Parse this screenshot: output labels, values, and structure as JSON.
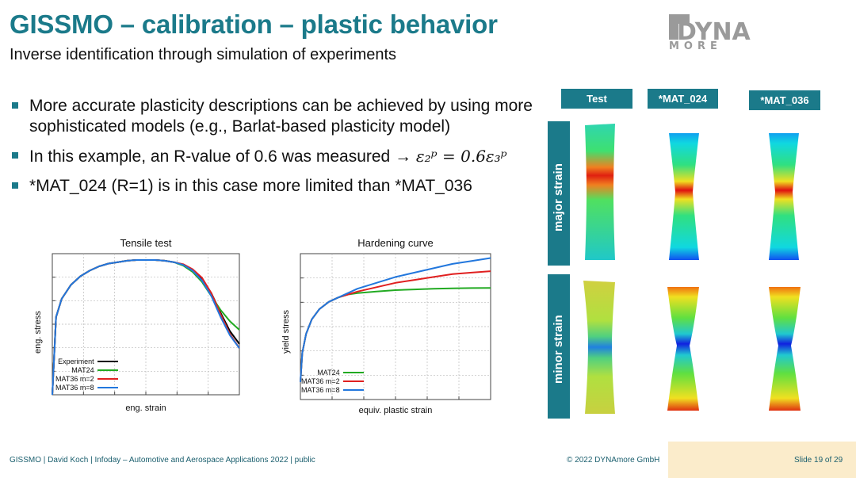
{
  "slide": {
    "title": "GISSMO – calibration – plastic behavior",
    "subtitle": "Inverse identification through simulation of experiments",
    "logo": {
      "line1": "DYNA",
      "line2": "MORE"
    },
    "bullets": [
      {
        "text": "More accurate plasticity descriptions can be achieved by using more sophisticated models (e.g., Barlat-based plasticity model)"
      },
      {
        "text": "In this example, an R-value of 0.6 was measured → ",
        "formula": "ε₂ᵖ = 0.6ε₃ᵖ"
      },
      {
        "text": "*MAT_024 (R=1) is in this case more limited than *MAT_036"
      }
    ]
  },
  "chart_data": [
    {
      "type": "line",
      "title": "Tensile test",
      "xlabel": "eng. strain",
      "ylabel": "eng. stress",
      "xlim": [
        0,
        1
      ],
      "ylim": [
        0,
        1
      ],
      "grid": true,
      "legend_position": "bottom-left",
      "x": [
        0.0,
        0.02,
        0.05,
        0.1,
        0.15,
        0.2,
        0.25,
        0.3,
        0.35,
        0.4,
        0.45,
        0.5,
        0.55,
        0.6,
        0.65,
        0.7,
        0.75,
        0.8,
        0.85,
        0.9,
        0.95,
        1.0
      ],
      "series": [
        {
          "name": "Experiment",
          "color": "#000000",
          "values": [
            0.0,
            0.55,
            0.68,
            0.78,
            0.84,
            0.88,
            0.91,
            0.93,
            0.94,
            0.95,
            0.955,
            0.955,
            0.955,
            0.95,
            0.94,
            0.92,
            0.88,
            0.82,
            0.72,
            0.58,
            0.45,
            0.36
          ]
        },
        {
          "name": "MAT24",
          "color": "#22aa22",
          "values": [
            0.0,
            0.55,
            0.68,
            0.78,
            0.84,
            0.88,
            0.91,
            0.93,
            0.94,
            0.95,
            0.955,
            0.955,
            0.955,
            0.95,
            0.94,
            0.915,
            0.87,
            0.8,
            0.7,
            0.6,
            0.52,
            0.46
          ]
        },
        {
          "name": "MAT36 m=2",
          "color": "#e02020",
          "values": [
            0.0,
            0.55,
            0.68,
            0.78,
            0.84,
            0.88,
            0.91,
            0.93,
            0.94,
            0.95,
            0.955,
            0.955,
            0.955,
            0.95,
            0.94,
            0.925,
            0.89,
            0.83,
            0.72,
            0.57,
            0.43,
            0.33
          ]
        },
        {
          "name": "MAT36 m=8",
          "color": "#2277dd",
          "values": [
            0.0,
            0.55,
            0.68,
            0.78,
            0.84,
            0.88,
            0.91,
            0.93,
            0.94,
            0.95,
            0.955,
            0.955,
            0.955,
            0.95,
            0.94,
            0.92,
            0.88,
            0.81,
            0.7,
            0.55,
            0.42,
            0.33
          ]
        }
      ]
    },
    {
      "type": "line",
      "title": "Hardening curve",
      "xlabel": "equiv. plastic strain",
      "ylabel": "yield stress",
      "xlim": [
        0,
        1
      ],
      "ylim": [
        0,
        1
      ],
      "grid": true,
      "legend_position": "bottom-left",
      "x": [
        0.0,
        0.01,
        0.03,
        0.06,
        0.1,
        0.15,
        0.2,
        0.25,
        0.3,
        0.4,
        0.5,
        0.6,
        0.7,
        0.8,
        0.9,
        1.0
      ],
      "series": [
        {
          "name": "MAT24",
          "color": "#22aa22",
          "values": [
            0.12,
            0.32,
            0.45,
            0.55,
            0.62,
            0.67,
            0.7,
            0.72,
            0.73,
            0.74,
            0.75,
            0.755,
            0.76,
            0.762,
            0.764,
            0.765
          ]
        },
        {
          "name": "MAT36 m=2",
          "color": "#e02020",
          "values": [
            0.12,
            0.32,
            0.45,
            0.55,
            0.62,
            0.67,
            0.7,
            0.72,
            0.74,
            0.77,
            0.8,
            0.82,
            0.84,
            0.86,
            0.87,
            0.88
          ]
        },
        {
          "name": "MAT36 m=8",
          "color": "#2277dd",
          "values": [
            0.12,
            0.32,
            0.45,
            0.55,
            0.62,
            0.67,
            0.7,
            0.73,
            0.76,
            0.8,
            0.84,
            0.87,
            0.9,
            0.93,
            0.95,
            0.97
          ]
        }
      ]
    }
  ],
  "contour_panel": {
    "columns": [
      "Test",
      "*MAT_024",
      "*MAT_036"
    ],
    "rows": [
      "major strain",
      "minor strain"
    ]
  },
  "footer": {
    "left": "GISSMO | David Koch | Infoday – Automotive and Aerospace Applications 2022 | public",
    "center": "© 2022 DYNAmore GmbH",
    "right": "Slide 19 of 29"
  },
  "colors": {
    "accent": "#1b7a8a",
    "footer_pane": "#fbeccb"
  }
}
